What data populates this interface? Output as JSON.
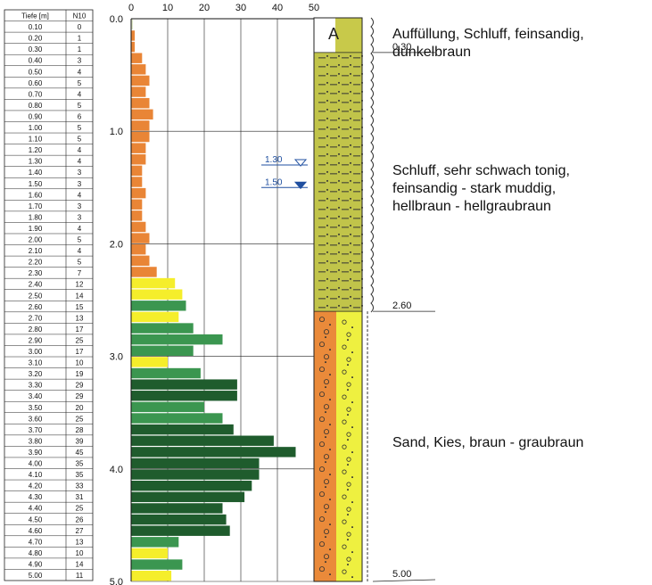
{
  "chart_data": {
    "type": "bar",
    "orientation": "horizontal",
    "table_headers": [
      "Tiefe [m]",
      "N10"
    ],
    "depths": [
      "0.10",
      "0.20",
      "0.30",
      "0.40",
      "0.50",
      "0.60",
      "0.70",
      "0.80",
      "0.90",
      "1.00",
      "1.10",
      "1.20",
      "1.30",
      "1.40",
      "1.50",
      "1.60",
      "1.70",
      "1.80",
      "1.90",
      "2.00",
      "2.10",
      "2.20",
      "2.30",
      "2.40",
      "2.50",
      "2.60",
      "2.70",
      "2.80",
      "2.90",
      "3.00",
      "3.10",
      "3.20",
      "3.30",
      "3.40",
      "3.50",
      "3.60",
      "3.70",
      "3.80",
      "3.90",
      "4.00",
      "4.10",
      "4.20",
      "4.30",
      "4.40",
      "4.50",
      "4.60",
      "4.70",
      "4.80",
      "4.90",
      "5.00"
    ],
    "values": [
      0,
      1,
      1,
      3,
      4,
      5,
      4,
      5,
      6,
      5,
      5,
      4,
      4,
      3,
      3,
      4,
      3,
      3,
      4,
      5,
      4,
      5,
      7,
      12,
      14,
      15,
      13,
      17,
      25,
      17,
      10,
      19,
      29,
      29,
      20,
      25,
      28,
      39,
      45,
      35,
      35,
      33,
      31,
      25,
      26,
      27,
      13,
      10,
      14,
      11
    ],
    "colors": [
      "#dfe7c8",
      "#e98536",
      "#e98536",
      "#e98536",
      "#e98536",
      "#e98536",
      "#e98536",
      "#e98536",
      "#e98536",
      "#e98536",
      "#e98536",
      "#e98536",
      "#e98536",
      "#e98536",
      "#e98536",
      "#e98536",
      "#e98536",
      "#e98536",
      "#e98536",
      "#e98536",
      "#e98536",
      "#e98536",
      "#e98536",
      "#f5ee2b",
      "#f5ee2b",
      "#3b9650",
      "#f5ee2b",
      "#3b9650",
      "#3b9650",
      "#3b9650",
      "#f5ee2b",
      "#3b9650",
      "#1f5c2d",
      "#1f5c2d",
      "#3b9650",
      "#3b9650",
      "#1f5c2d",
      "#1f5c2d",
      "#1f5c2d",
      "#1f5c2d",
      "#1f5c2d",
      "#1f5c2d",
      "#1f5c2d",
      "#1f5c2d",
      "#1f5c2d",
      "#1f5c2d",
      "#3b9650",
      "#f5ee2b",
      "#3b9650",
      "#f5ee2b"
    ],
    "xticks": [
      "0",
      "10",
      "20",
      "30",
      "40",
      "50"
    ],
    "yticks": [
      "0.0",
      "1.0",
      "2.0",
      "3.0",
      "4.0",
      "5.0"
    ],
    "xlim": [
      0,
      50
    ],
    "ylim": [
      0,
      5
    ],
    "layer_boundaries": [
      {
        "depth": 0.3,
        "label": "0.30"
      },
      {
        "depth": 2.6,
        "label": "2.60"
      },
      {
        "depth": 5.0,
        "label": "5.00"
      }
    ],
    "water_levels": [
      {
        "depth": 1.3,
        "label": "1.30",
        "style": "open"
      },
      {
        "depth": 1.5,
        "label": "1.50",
        "style": "filled"
      }
    ],
    "fill_symbol": "A",
    "layers": [
      {
        "lines": [
          "Auffüllung, Schluff, feinsandig,",
          "dunkelbraun"
        ]
      },
      {
        "lines": [
          "Schluff, sehr schwach tonig,",
          "feinsandig - stark muddig,",
          "hellbraun - hellgraubraun"
        ]
      },
      {
        "lines": [
          "Sand, Kies, braun - graubraun"
        ]
      }
    ],
    "layer_colors": {
      "fill": "#c8c94a",
      "silt": "#c1c44a",
      "sand": "#ea8a3a",
      "gravel": "#eef040"
    }
  }
}
